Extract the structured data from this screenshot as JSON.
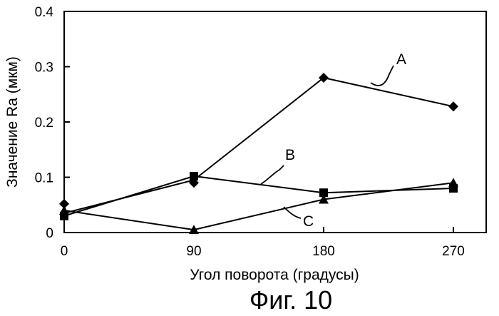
{
  "chart_data": {
    "type": "line",
    "x": [
      0,
      90,
      180,
      270
    ],
    "x_tick_labels": [
      "0",
      "90",
      "180",
      "270"
    ],
    "y_tick_labels": [
      "0",
      "0.1",
      "0.2",
      "0.3",
      "0.4"
    ],
    "xlim": [
      0,
      270
    ],
    "ylim": [
      0,
      0.4
    ],
    "xlabel": "Угол поворота (градусы)",
    "ylabel": "Значение Ra (мкм)",
    "grid": false,
    "series": [
      {
        "name": "A",
        "marker": "diamond",
        "values": [
          0.035,
          0.095,
          0.28,
          0.228
        ]
      },
      {
        "name": "B",
        "marker": "square",
        "values": [
          0.03,
          0.102,
          0.072,
          0.08
        ]
      },
      {
        "name": "C",
        "marker": "triangle",
        "values": [
          0.04,
          0.005,
          0.06,
          0.09
        ]
      }
    ],
    "extra_points": [
      {
        "series": "A",
        "x": 0,
        "y": 0.052,
        "marker": "diamond"
      },
      {
        "series": "A",
        "x": 90,
        "y": 0.09,
        "marker": "diamond"
      }
    ]
  },
  "caption": "Фиг. 10"
}
